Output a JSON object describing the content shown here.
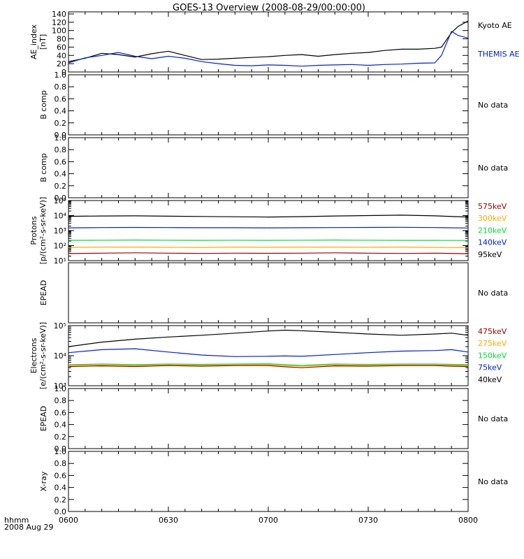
{
  "title": "GOES-13 Overview (2008-08-29/00:00:00)",
  "time_axis": {
    "label_line1": "hhmm",
    "label_line2": "2008 Aug 29",
    "ticks": [
      "0600",
      "0630",
      "0700",
      "0730",
      "0800"
    ]
  },
  "colors": {
    "black": "#000000",
    "blue": "#0022cc",
    "green": "#00dd33",
    "orange": "#ffaa00",
    "red": "#990000",
    "axis": "#000000"
  },
  "chart_data": [
    {
      "id": "ae",
      "type": "line",
      "ylabel": [
        "AE_index",
        "[nT]"
      ],
      "scale": "linear",
      "ylim": [
        0,
        145
      ],
      "yticks": [
        0,
        20,
        40,
        60,
        80,
        100,
        120,
        140
      ],
      "ytick_labels": [
        "0",
        "20",
        "40",
        "60",
        "80",
        "100",
        "120",
        "140"
      ],
      "x": [
        0,
        5,
        10,
        15,
        20,
        25,
        30,
        35,
        40,
        45,
        50,
        55,
        60,
        65,
        70,
        75,
        80,
        85,
        90,
        95,
        100,
        105,
        110,
        112,
        115,
        117,
        120
      ],
      "series": [
        {
          "name": "Kyoto AE",
          "color": "#000000",
          "values": [
            25,
            33,
            45,
            42,
            36,
            44,
            50,
            40,
            30,
            31,
            33,
            35,
            37,
            40,
            42,
            38,
            42,
            45,
            47,
            52,
            55,
            55,
            57,
            60,
            95,
            110,
            123
          ]
        },
        {
          "name": "THEMIS AE",
          "color": "#0022cc",
          "values": [
            22,
            34,
            40,
            47,
            38,
            32,
            38,
            33,
            25,
            20,
            16,
            15,
            17,
            16,
            14,
            16,
            17,
            18,
            16,
            18,
            19,
            21,
            22,
            40,
            98,
            88,
            82
          ]
        }
      ],
      "legend": [
        "Kyoto AE",
        "THEMIS AE"
      ],
      "legend_colors": [
        "#000000",
        "#0022cc"
      ]
    },
    {
      "id": "bcomp1",
      "type": "line",
      "ylabel": [
        "B comp"
      ],
      "scale": "linear",
      "ylim": [
        0,
        1
      ],
      "yticks": [
        0,
        0.2,
        0.4,
        0.6,
        0.8,
        1.0
      ],
      "ytick_labels": [
        "0.0",
        "0.2",
        "0.4",
        "0.6",
        "0.8",
        "1.0"
      ],
      "series": [],
      "legend": [
        "No data"
      ],
      "legend_colors": [
        "#000000"
      ]
    },
    {
      "id": "bcomp2",
      "type": "line",
      "ylabel": [
        "B comp"
      ],
      "scale": "linear",
      "ylim": [
        0,
        1
      ],
      "yticks": [
        0,
        0.2,
        0.4,
        0.6,
        0.8,
        1.0
      ],
      "ytick_labels": [
        "0.0",
        "0.2",
        "0.4",
        "0.6",
        "0.8",
        "1.0"
      ],
      "series": [],
      "legend": [
        "No data"
      ],
      "legend_colors": [
        "#000000"
      ]
    },
    {
      "id": "protons",
      "type": "line",
      "ylabel": [
        "Protons",
        "[p/(cm²-s-sr-keV)]"
      ],
      "scale": "log",
      "ylim": [
        1,
        5
      ],
      "yticks": [
        1,
        2,
        3,
        4,
        5
      ],
      "ytick_labels": [
        "10¹",
        "10²",
        "10³",
        "10⁴",
        "10⁵"
      ],
      "x": [
        0,
        10,
        20,
        30,
        40,
        50,
        60,
        70,
        80,
        90,
        100,
        110,
        120
      ],
      "series": [
        {
          "name": "95keV",
          "color": "#000000",
          "values": [
            3.95,
            3.97,
            3.98,
            3.96,
            3.94,
            3.92,
            3.9,
            3.93,
            3.97,
            4.0,
            4.03,
            3.98,
            3.9
          ]
        },
        {
          "name": "140keV",
          "color": "#0022cc",
          "values": [
            3.18,
            3.2,
            3.21,
            3.2,
            3.19,
            3.19,
            3.18,
            3.19,
            3.2,
            3.21,
            3.22,
            3.2,
            3.17
          ]
        },
        {
          "name": "210keV",
          "color": "#00dd33",
          "values": [
            2.35,
            2.36,
            2.37,
            2.36,
            2.35,
            2.36,
            2.35,
            2.36,
            2.37,
            2.36,
            2.35,
            2.35,
            2.34
          ]
        },
        {
          "name": "300keV",
          "color": "#ffaa00",
          "values": [
            1.88,
            1.9,
            1.9,
            1.89,
            1.88,
            1.9,
            1.89,
            1.9,
            1.9,
            1.89,
            1.9,
            1.88,
            1.86
          ]
        },
        {
          "name": "575keV",
          "color": "#990000",
          "values": [
            1.47,
            1.5,
            1.52,
            1.5,
            1.48,
            1.5,
            1.49,
            1.5,
            1.52,
            1.5,
            1.48,
            1.5,
            1.46
          ]
        }
      ],
      "legend": [
        "575keV",
        "300keV",
        "210keV",
        "140keV",
        "95keV"
      ],
      "legend_colors": [
        "#990000",
        "#ffaa00",
        "#00dd33",
        "#0022cc",
        "#000000"
      ]
    },
    {
      "id": "epead1",
      "type": "line",
      "ylabel": [
        "EPEAD"
      ],
      "scale": "linear",
      "ylim": [
        0,
        1
      ],
      "yticks": [],
      "ytick_labels": [],
      "series": [],
      "legend": [
        "No data"
      ],
      "legend_colors": [
        "#000000"
      ]
    },
    {
      "id": "electrons",
      "type": "line",
      "ylabel": [
        "Electrons",
        "[e/(cm²-s-sr-keV)]"
      ],
      "scale": "log",
      "ylim": [
        3,
        5
      ],
      "yticks": [
        3,
        4,
        5
      ],
      "ytick_labels": [
        "10³",
        "10⁴",
        "10⁵"
      ],
      "x": [
        0,
        10,
        20,
        30,
        40,
        50,
        60,
        65,
        70,
        80,
        90,
        100,
        110,
        115,
        120
      ],
      "series": [
        {
          "name": "40keV",
          "color": "#000000",
          "values": [
            4.3,
            4.45,
            4.55,
            4.62,
            4.68,
            4.75,
            4.82,
            4.85,
            4.83,
            4.78,
            4.72,
            4.68,
            4.72,
            4.75,
            4.68
          ]
        },
        {
          "name": "75keV",
          "color": "#0022cc",
          "values": [
            4.1,
            4.2,
            4.23,
            4.12,
            4.02,
            3.97,
            3.98,
            3.99,
            3.98,
            4.04,
            4.1,
            4.15,
            4.17,
            4.2,
            4.12
          ]
        },
        {
          "name": "150keV",
          "color": "#00dd33",
          "values": [
            3.7,
            3.72,
            3.7,
            3.72,
            3.71,
            3.72,
            3.73,
            3.7,
            3.68,
            3.72,
            3.71,
            3.72,
            3.72,
            3.71,
            3.7
          ]
        },
        {
          "name": "275keV",
          "color": "#ffaa00",
          "values": [
            3.68,
            3.69,
            3.67,
            3.69,
            3.68,
            3.69,
            3.7,
            3.67,
            3.65,
            3.69,
            3.68,
            3.69,
            3.69,
            3.68,
            3.67
          ]
        },
        {
          "name": "475keV",
          "color": "#990000",
          "values": [
            3.64,
            3.66,
            3.64,
            3.67,
            3.65,
            3.67,
            3.67,
            3.63,
            3.6,
            3.66,
            3.65,
            3.67,
            3.67,
            3.65,
            3.64
          ]
        }
      ],
      "legend": [
        "475keV",
        "275keV",
        "150keV",
        "75keV",
        "40keV"
      ],
      "legend_colors": [
        "#990000",
        "#ffaa00",
        "#00dd33",
        "#0022cc",
        "#000000"
      ]
    },
    {
      "id": "epead2",
      "type": "line",
      "ylabel": [
        "EPEAD"
      ],
      "scale": "linear",
      "ylim": [
        0,
        1
      ],
      "yticks": [
        0,
        0.2,
        0.4,
        0.6,
        0.8,
        1.0
      ],
      "ytick_labels": [
        "0.0",
        "0.2",
        "0.4",
        "0.6",
        "0.8",
        "1.0"
      ],
      "series": [],
      "legend": [
        "No data"
      ],
      "legend_colors": [
        "#000000"
      ]
    },
    {
      "id": "xray",
      "type": "line",
      "ylabel": [
        "X-ray"
      ],
      "scale": "linear",
      "ylim": [
        0,
        1
      ],
      "yticks": [
        0,
        0.2,
        0.4,
        0.6,
        0.8,
        1.0
      ],
      "ytick_labels": [
        "0.0",
        "0.2",
        "0.4",
        "0.6",
        "0.8",
        "1.0"
      ],
      "series": [],
      "legend": [
        "No data"
      ],
      "legend_colors": [
        "#000000"
      ]
    }
  ]
}
